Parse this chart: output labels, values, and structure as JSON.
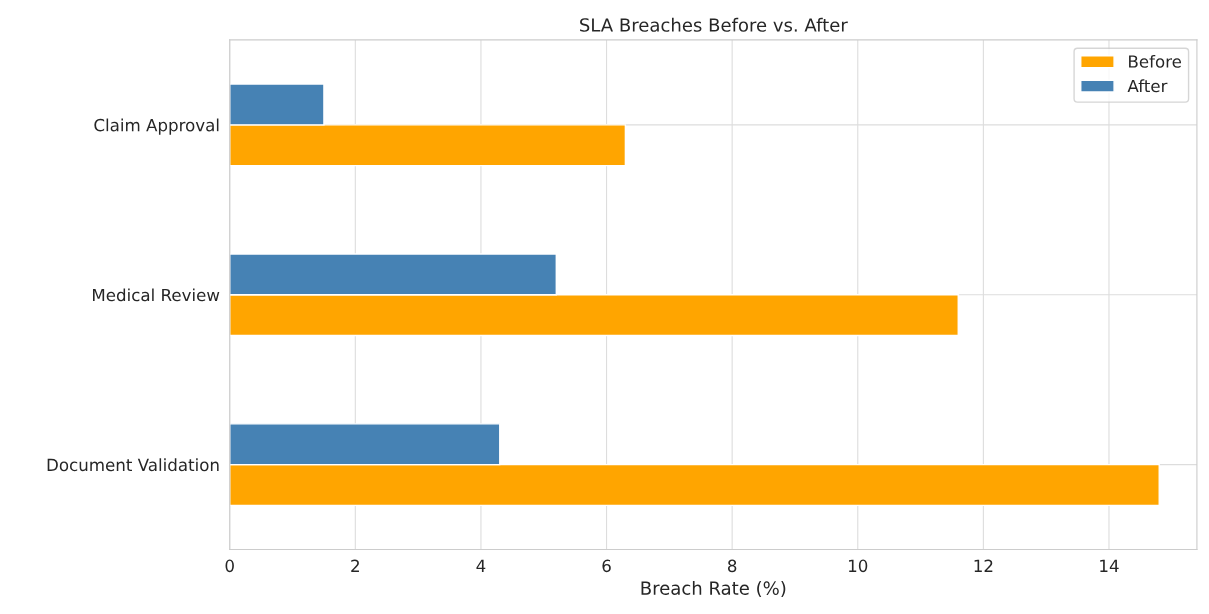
{
  "chart_data": {
    "type": "bar",
    "orientation": "horizontal",
    "title": "SLA Breaches Before vs. After",
    "xlabel": "Breach Rate (%)",
    "categories": [
      "Claim Approval",
      "Medical Review",
      "Document Validation"
    ],
    "series": [
      {
        "name": "Before",
        "color": "#ffa500",
        "values": [
          6.3,
          11.6,
          14.8
        ]
      },
      {
        "name": "After",
        "color": "#4682b4",
        "values": [
          1.5,
          5.2,
          4.3
        ]
      }
    ],
    "xlim": [
      0,
      15.4
    ],
    "xticks": [
      0,
      2,
      4,
      6,
      8,
      10,
      12,
      14
    ],
    "grid": true,
    "legend": "top right"
  }
}
